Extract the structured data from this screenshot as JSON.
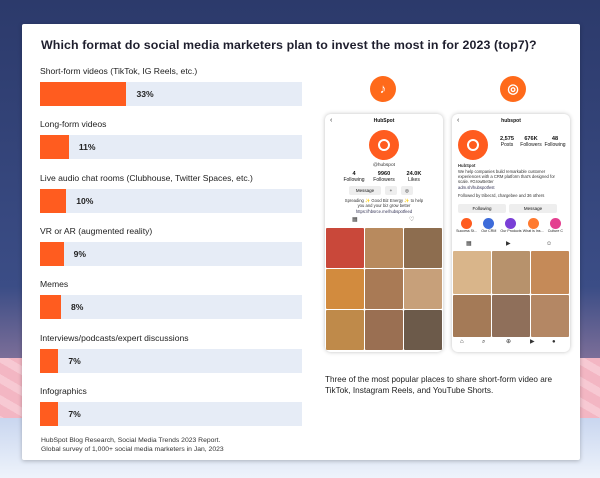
{
  "title": "Which format do social media marketers plan to invest the most in for 2023 (top7)?",
  "chart_data": {
    "type": "bar",
    "orientation": "horizontal",
    "categories": [
      "Short-form videos (TikTok, IG Reels, etc.)",
      "Long-form videos",
      "Live audio chat rooms (Clubhouse, Twitter Spaces, etc.)",
      "VR or AR (augmented reality)",
      "Memes",
      "Interviews/podcasts/expert discussions",
      "Infographics"
    ],
    "values": [
      33,
      11,
      10,
      9,
      8,
      7,
      7
    ],
    "value_labels": [
      "33%",
      "11%",
      "10%",
      "9%",
      "8%",
      "7%",
      "7%"
    ],
    "unit": "%",
    "xlim": [
      0,
      100
    ],
    "bar_color": "#ff5c1f",
    "track_color": "#e6ecf6",
    "title": "Which format do social media marketers plan to invest the most in for 2023 (top7)?",
    "xlabel": "",
    "ylabel": "",
    "grid": false,
    "legend": "none"
  },
  "source_lines": [
    "HubSpot Blog Research, Social Media Trends 2023 Report.",
    "Global survey of 1,000+ social media marketers in Jan, 2023"
  ],
  "icons": {
    "tiktok": "tiktok-icon",
    "instagram": "instagram-icon",
    "tiktok_glyph": "♪",
    "instagram_glyph": "◎"
  },
  "tiktok_phone": {
    "header": "HubSpot",
    "handle": "@hubspot",
    "stats": [
      {
        "value": "4",
        "label": "Following"
      },
      {
        "value": "9960",
        "label": "Followers"
      },
      {
        "value": "24.0K",
        "label": "Likes"
      }
    ],
    "message_label": "Message",
    "bio": "Spreading ✨ Good Biz Energy ✨ to help you and your biz grow better",
    "link": "https://hbsrce.me/hubspotfeed"
  },
  "instagram_phone": {
    "header": "hubspot",
    "stats": [
      {
        "value": "2,575",
        "label": "Posts"
      },
      {
        "value": "676K",
        "label": "Followers"
      },
      {
        "value": "48",
        "label": "Following"
      }
    ],
    "name": "HubSpot",
    "bio": "We help companies build remarkable customer experiences with a CRM platform that's designed for scale. #GrowBetter",
    "link": "adm.sh/hubspotfest",
    "followed_by": "Followed by tribecrd, chargebee and 36 others",
    "following_label": "Following",
    "message_label": "Message",
    "highlights": [
      "Success St...",
      "Our CRM",
      "Our Products",
      "What is Ins...",
      "Culture C"
    ]
  },
  "caption": "Three of the most popular places to share short-form video are TikTok, Instagram Reels, and YouTube Shorts.",
  "colors": {
    "accent": "#ff5c1f",
    "track": "#e6ecf6",
    "text": "#1f1f2e"
  }
}
